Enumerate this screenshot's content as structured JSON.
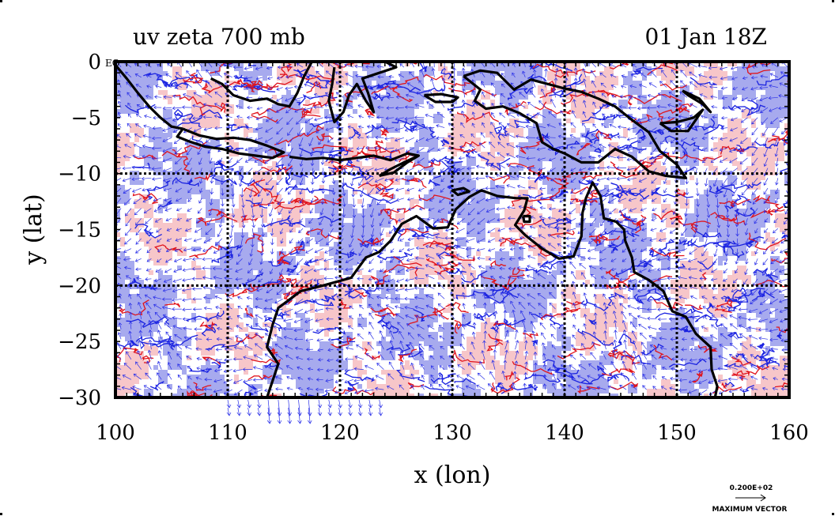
{
  "chart_data": {
    "type": "heatmap",
    "title": "uv zeta 700 mb",
    "time_label": "01 Jan 18Z",
    "xlabel": "x (lon)",
    "ylabel": "y (lat)",
    "xlim": [
      100,
      160
    ],
    "ylim": [
      -30,
      0
    ],
    "x_ticks": [
      100,
      110,
      120,
      130,
      140,
      150,
      160
    ],
    "x_tick_labels": [
      "100",
      "110",
      "120",
      "130",
      "140",
      "150",
      "160"
    ],
    "y_ticks": [
      0,
      -5,
      -10,
      -15,
      -20,
      -25,
      -30
    ],
    "y_tick_labels": [
      "0",
      "−5",
      "−10",
      "−15",
      "−20",
      "−25",
      "−30"
    ],
    "gridlines_lon": [
      110,
      120,
      130,
      140,
      150
    ],
    "gridlines_lat": [
      -10,
      -20
    ],
    "eq_label": "EQ",
    "vector_scale_label": "0.200E+02",
    "vector_legend_label": "MAXIMUM VECTOR",
    "colors": {
      "positive_fill": "#f7c6c9",
      "negative_fill": "#a7aaee",
      "positive_contour": "#e0141c",
      "negative_contour": "#1a22e0",
      "vector": "#2a30e8",
      "coast": "#000000"
    },
    "coastlines": [
      {
        "name": "sumatra",
        "points": [
          [
            100,
            -0.3
          ],
          [
            101,
            -1.5
          ],
          [
            102,
            -2.8
          ],
          [
            103,
            -4.0
          ],
          [
            104,
            -5.0
          ],
          [
            105,
            -5.8
          ],
          [
            106,
            -6.0
          ]
        ]
      },
      {
        "name": "java",
        "points": [
          [
            106,
            -6.0
          ],
          [
            107.5,
            -6.6
          ],
          [
            109,
            -6.9
          ],
          [
            110.5,
            -6.8
          ],
          [
            112,
            -7.0
          ],
          [
            113.5,
            -7.5
          ],
          [
            115,
            -8.1
          ],
          [
            114,
            -8.6
          ],
          [
            112.5,
            -8.4
          ],
          [
            111,
            -8.2
          ],
          [
            109.5,
            -7.8
          ],
          [
            108,
            -7.6
          ],
          [
            106.5,
            -7.1
          ],
          [
            105.5,
            -6.7
          ],
          [
            106,
            -6.0
          ]
        ]
      },
      {
        "name": "lesser-sunda",
        "points": [
          [
            115.5,
            -8.5
          ],
          [
            117,
            -8.7
          ],
          [
            118.5,
            -8.6
          ],
          [
            120,
            -8.8
          ],
          [
            121.5,
            -8.6
          ],
          [
            123,
            -8.4
          ],
          [
            124.5,
            -8.8
          ],
          [
            126,
            -8.2
          ],
          [
            127,
            -8.4
          ]
        ]
      },
      {
        "name": "timor",
        "points": [
          [
            123.5,
            -10.2
          ],
          [
            124.5,
            -9.6
          ],
          [
            125.5,
            -9.1
          ],
          [
            127,
            -8.4
          ],
          [
            126,
            -9.0
          ],
          [
            124.8,
            -9.9
          ],
          [
            123.5,
            -10.2
          ]
        ]
      },
      {
        "name": "borneo-south",
        "points": [
          [
            108.5,
            -1.5
          ],
          [
            109.5,
            -2.0
          ],
          [
            110.5,
            -3.0
          ],
          [
            112,
            -3.5
          ],
          [
            113.5,
            -3.3
          ],
          [
            114.5,
            -3.8
          ],
          [
            115.5,
            -4.0
          ],
          [
            116.2,
            -2.8
          ],
          [
            116.8,
            -1.3
          ],
          [
            117.5,
            0
          ]
        ]
      },
      {
        "name": "sulawesi",
        "points": [
          [
            119.5,
            -0.5
          ],
          [
            119.3,
            -2.0
          ],
          [
            119.0,
            -3.5
          ],
          [
            119.5,
            -5.4
          ],
          [
            120.3,
            -4.5
          ],
          [
            120.8,
            -3.0
          ],
          [
            121.5,
            -2.0
          ],
          [
            122.3,
            -3.5
          ],
          [
            123.0,
            -4.5
          ],
          [
            122.5,
            -2.8
          ],
          [
            122.0,
            -1.5
          ],
          [
            123.5,
            -1.0
          ],
          [
            125.0,
            -0.5
          ],
          [
            124.0,
            0
          ]
        ]
      },
      {
        "name": "seram",
        "points": [
          [
            127.5,
            -3.0
          ],
          [
            129,
            -2.9
          ],
          [
            130.5,
            -3.2
          ],
          [
            130.0,
            -3.6
          ],
          [
            128.5,
            -3.6
          ],
          [
            127.5,
            -3.0
          ]
        ]
      },
      {
        "name": "new-guinea",
        "points": [
          [
            131,
            -1.3
          ],
          [
            132.5,
            -0.8
          ],
          [
            134,
            -1.0
          ],
          [
            135.5,
            -2.5
          ],
          [
            137,
            -1.6
          ],
          [
            138.5,
            -2.0
          ],
          [
            140,
            -2.4
          ],
          [
            141.5,
            -2.7
          ],
          [
            143,
            -3.3
          ],
          [
            144.5,
            -4.0
          ],
          [
            146,
            -5.2
          ],
          [
            147.5,
            -6.3
          ],
          [
            148.5,
            -8.0
          ],
          [
            150,
            -9.2
          ],
          [
            150.8,
            -10.4
          ],
          [
            149,
            -10.2
          ],
          [
            147.5,
            -9.8
          ],
          [
            146,
            -8.5
          ],
          [
            144.5,
            -7.8
          ],
          [
            143,
            -9.0
          ],
          [
            141.5,
            -9.0
          ],
          [
            140,
            -8.2
          ],
          [
            139,
            -7.8
          ],
          [
            138,
            -7.2
          ],
          [
            137.5,
            -5.5
          ],
          [
            136,
            -4.6
          ],
          [
            134.5,
            -4.0
          ],
          [
            133,
            -4.2
          ],
          [
            132,
            -3.5
          ],
          [
            132.5,
            -2.5
          ],
          [
            131,
            -1.3
          ]
        ]
      },
      {
        "name": "new-britain",
        "points": [
          [
            148.5,
            -5.5
          ],
          [
            150,
            -5.4
          ],
          [
            151.5,
            -5.0
          ],
          [
            152.3,
            -4.3
          ],
          [
            151.0,
            -6.2
          ],
          [
            149.5,
            -6.2
          ],
          [
            148.5,
            -5.5
          ]
        ]
      },
      {
        "name": "new-ireland",
        "points": [
          [
            150.5,
            -2.6
          ],
          [
            152,
            -3.3
          ],
          [
            153,
            -4.5
          ],
          [
            152.3,
            -3.8
          ],
          [
            151,
            -3.0
          ],
          [
            150.5,
            -2.6
          ]
        ]
      },
      {
        "name": "australia",
        "points": [
          [
            113.5,
            -30
          ],
          [
            114.5,
            -27
          ],
          [
            113.5,
            -25.5
          ],
          [
            114,
            -23.5
          ],
          [
            114.5,
            -22
          ],
          [
            116.5,
            -20.5
          ],
          [
            118.5,
            -20.0
          ],
          [
            121,
            -19.3
          ],
          [
            122.3,
            -17.5
          ],
          [
            123.5,
            -17.0
          ],
          [
            124.5,
            -16.0
          ],
          [
            125.5,
            -14.5
          ],
          [
            126.8,
            -13.8
          ],
          [
            128.3,
            -14.9
          ],
          [
            129.6,
            -14.8
          ],
          [
            130.3,
            -13.2
          ],
          [
            131.5,
            -12.1
          ],
          [
            132.6,
            -11.5
          ],
          [
            134,
            -12.0
          ],
          [
            135.7,
            -12.2
          ],
          [
            136.7,
            -12.2
          ],
          [
            136.4,
            -13.3
          ],
          [
            135.6,
            -14.6
          ],
          [
            136.5,
            -15.5
          ],
          [
            138,
            -16.7
          ],
          [
            139.5,
            -17.6
          ],
          [
            140.8,
            -17.4
          ],
          [
            141.5,
            -15.6
          ],
          [
            141.6,
            -13.5
          ],
          [
            141.9,
            -12.2
          ],
          [
            142.5,
            -10.8
          ],
          [
            143.2,
            -12.0
          ],
          [
            143.5,
            -14.0
          ],
          [
            144.6,
            -14.3
          ],
          [
            145.3,
            -15.0
          ],
          [
            145.4,
            -16.0
          ],
          [
            146.0,
            -17.5
          ],
          [
            146.2,
            -18.8
          ],
          [
            147.5,
            -19.5
          ],
          [
            148.8,
            -20.5
          ],
          [
            149.6,
            -22.3
          ],
          [
            150.8,
            -22.8
          ],
          [
            151.7,
            -24.3
          ],
          [
            153.0,
            -25.5
          ],
          [
            153.1,
            -27.5
          ],
          [
            153.6,
            -29.0
          ],
          [
            153.4,
            -30
          ]
        ]
      },
      {
        "name": "melville",
        "points": [
          [
            130.0,
            -11.5
          ],
          [
            131.0,
            -11.3
          ],
          [
            131.5,
            -11.6
          ],
          [
            130.5,
            -11.9
          ],
          [
            130.0,
            -11.5
          ]
        ]
      },
      {
        "name": "groote",
        "points": [
          [
            136.3,
            -13.8
          ],
          [
            136.9,
            -13.8
          ],
          [
            136.9,
            -14.3
          ],
          [
            136.4,
            -14.3
          ],
          [
            136.3,
            -13.8
          ]
        ]
      }
    ]
  }
}
